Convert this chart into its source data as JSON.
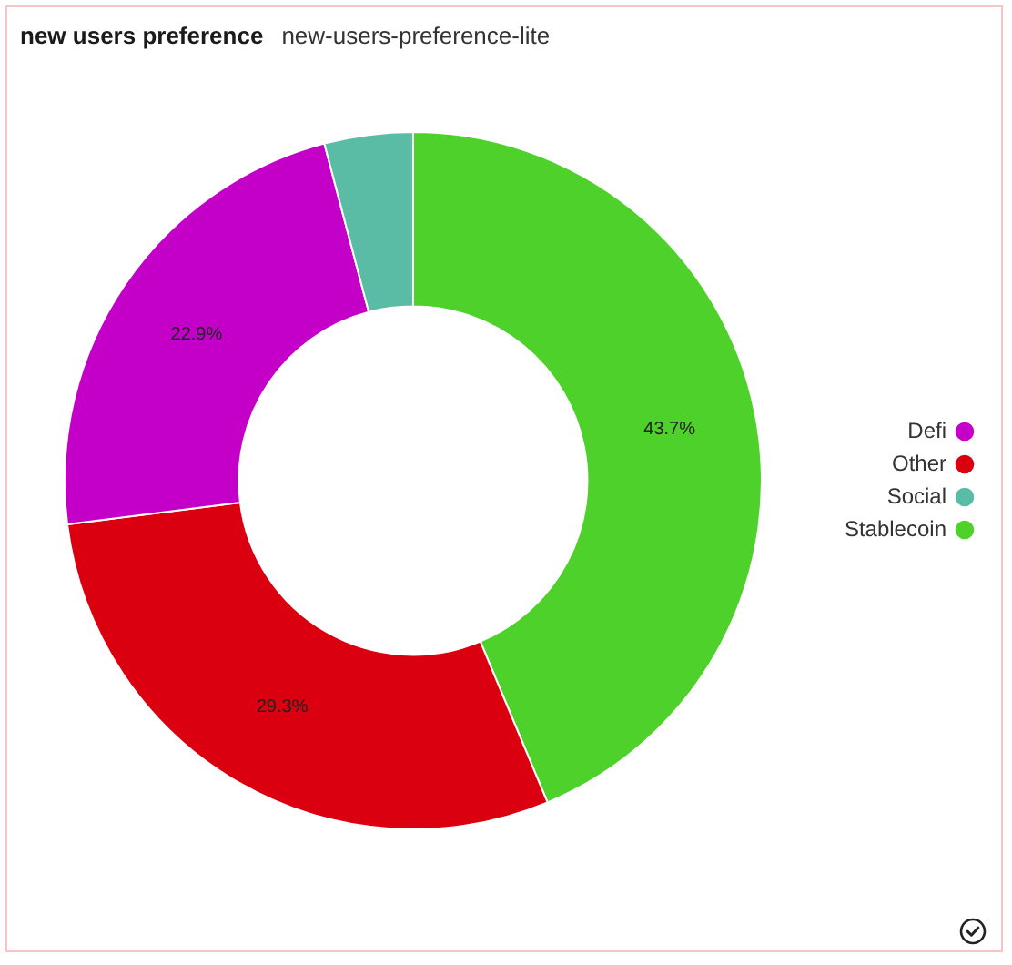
{
  "chart_data": {
    "type": "donut",
    "title": "new users preference",
    "subtitle": "new-users-preference-lite",
    "categories": [
      "Stablecoin",
      "Other",
      "Defi",
      "Social"
    ],
    "values": [
      43.7,
      29.3,
      22.9,
      4.1
    ],
    "colors": [
      "#4ed12a",
      "#da0010",
      "#c400c8",
      "#5bbca6"
    ],
    "value_labels": [
      "43.7%",
      "29.3%",
      "22.9%",
      null
    ],
    "legend": "right"
  }
}
